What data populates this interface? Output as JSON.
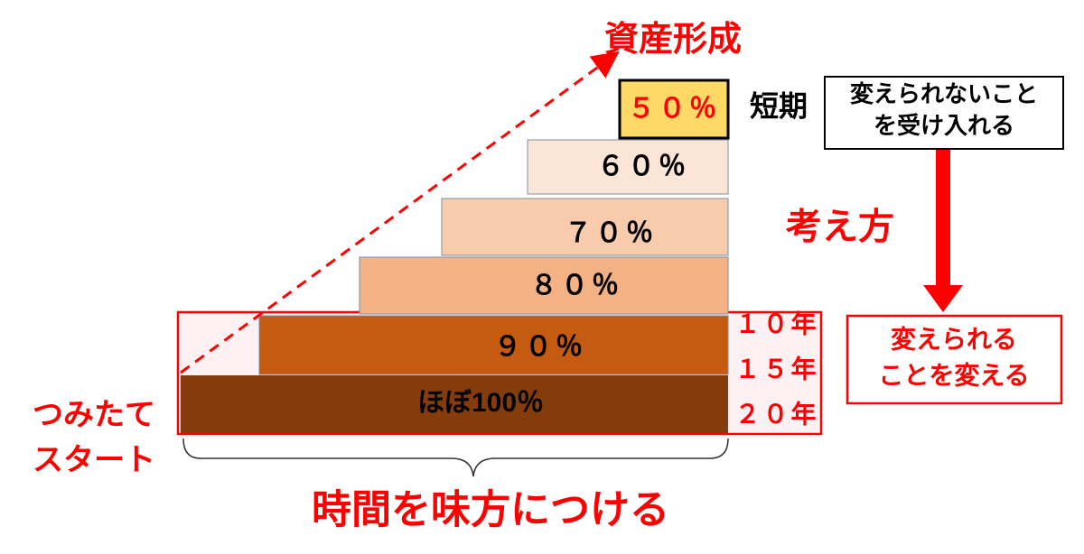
{
  "title": "資産形成",
  "steps": [
    {
      "label": "５０％",
      "note": "短期"
    },
    {
      "label": "６０％"
    },
    {
      "label": "７０％"
    },
    {
      "label": "８０％"
    },
    {
      "label": "９０％",
      "period": "１０年"
    },
    {
      "label": "ほぼ100％",
      "period": "１５年"
    }
  ],
  "period_last": "２０年",
  "accept_box": [
    "変えられないこと",
    "を受け入れる"
  ],
  "mindset": "考え方",
  "change_box": [
    "変えられる",
    "ことを変える"
  ],
  "start": [
    "つみたて",
    "スタート"
  ],
  "footer": "時間を味方につける"
}
